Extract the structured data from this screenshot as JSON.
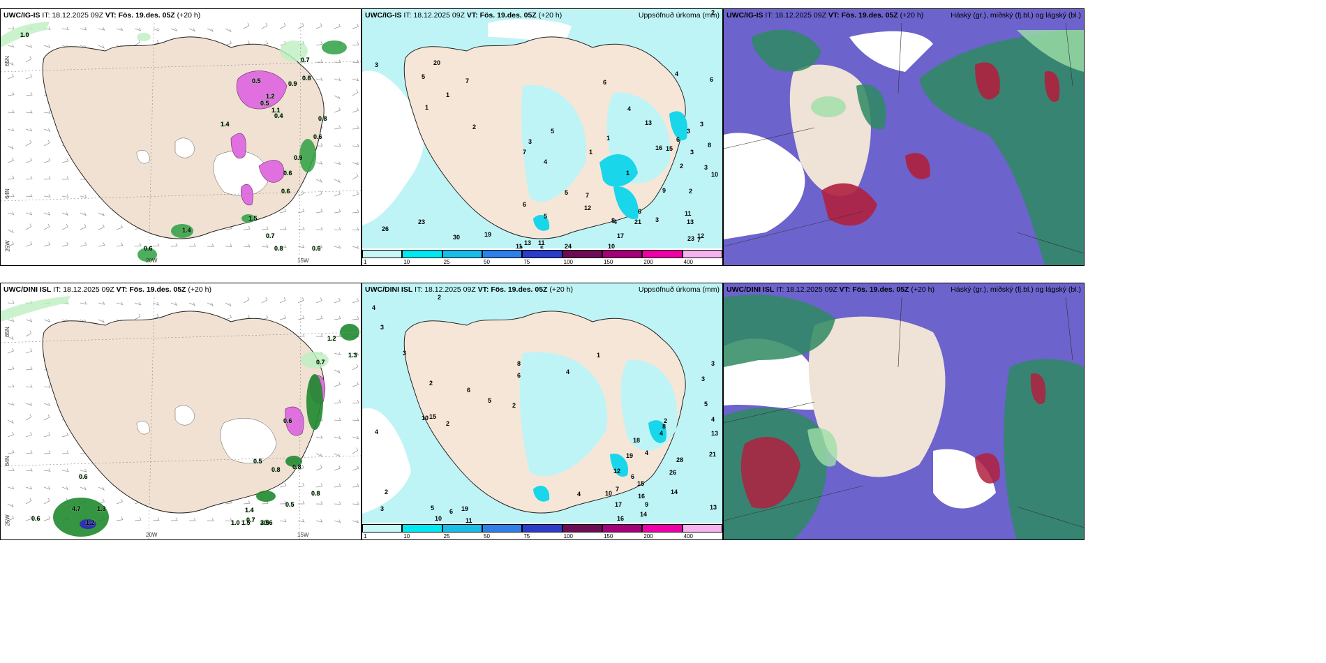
{
  "panels": {
    "tl": {
      "title": "UWC/IG-IS",
      "it": "18.12.2025 09Z",
      "vt": "Fös. 19.des. 05Z",
      "lead": "(+20 h)",
      "right": ""
    },
    "tm": {
      "title": "UWC/IG-IS",
      "it": "18.12.2025 09Z",
      "vt": "Fös. 19.des. 05Z",
      "lead": "(+20 h)",
      "right": "Uppsöfnuð úrkoma (mm)"
    },
    "tr": {
      "title": "UWC/IG-IS",
      "it": "18.12.2025 09Z",
      "vt": "Fös. 19.des. 05Z",
      "lead": "(+20 h)",
      "right": "Háský (gr.), miðský (fj.bl.) og lágský (bl.)"
    },
    "bl": {
      "title": "UWC/DINI ISL",
      "it": "18.12.2025 09Z",
      "vt": "Fös. 19.des. 05Z",
      "lead": "(+20 h)",
      "right": ""
    },
    "bm": {
      "title": "UWC/DINI ISL",
      "it": "18.12.2025 09Z",
      "vt": "Fös. 19.des. 05Z",
      "lead": "(+20 h)",
      "right": "Uppsöfnuð úrkoma (mm)"
    },
    "br": {
      "title": "UWC/DINI ISL",
      "it": "18.12.2025 09Z",
      "vt": "Fös. 19.des. 05Z",
      "lead": "(+20 h)",
      "right": "Háský (gr.), miðský (fj.bl.) og lágský (bl.)"
    }
  },
  "labels": {
    "it": "IT:",
    "vt": "VT:"
  },
  "colorbar": {
    "ticks": [
      "1",
      "10",
      "25",
      "50",
      "75",
      "100",
      "150",
      "200",
      "400"
    ],
    "colors": [
      "#c8f7f7",
      "#00e8f0",
      "#19bde8",
      "#2f7fe8",
      "#2b3cc8",
      "#6e0c55",
      "#a3007a",
      "#ee00a8",
      "#f5b4f0"
    ]
  },
  "axes": {
    "lat_65": "65N",
    "lat_64": "64N",
    "lon_20": "20W",
    "lon_15": "15W",
    "lon_25": "25W"
  },
  "values": {
    "tl": [
      "1.0",
      "0.7",
      "0.5",
      "0.8",
      "0.9",
      "1.2",
      "0.5",
      "1.1",
      "0.4",
      "0.8",
      "0.6",
      "0.9",
      "0.6",
      "0.6",
      "1.4",
      "0.7",
      "0.8",
      "0.6",
      "1.5",
      "1.4",
      "0.6"
    ],
    "tm": [
      "3",
      "2",
      "20",
      "5",
      "7",
      "1",
      "1",
      "2",
      "3",
      "7",
      "16",
      "4",
      "3",
      "2",
      "1",
      "3",
      "3",
      "6",
      "3",
      "9",
      "2",
      "11",
      "6",
      "3",
      "8",
      "21",
      "17",
      "13",
      "12",
      "23",
      "7",
      "10",
      "24",
      "26",
      "30",
      "23",
      "19",
      "11",
      "13",
      "11",
      "5",
      "12",
      "6",
      "4",
      "2",
      "1",
      "1",
      "5",
      "6",
      "4",
      "13",
      "15",
      "8",
      "10",
      "4",
      "6",
      "5",
      "7",
      "5"
    ],
    "bl": [
      "0.7",
      "1.2",
      "0.5",
      "0.6",
      "0.8",
      "0.6",
      "0.8",
      "0.5",
      "1.4",
      "0.7",
      "4.7",
      "1.3",
      "0.6",
      "1.2",
      "1.0",
      "1.5",
      "2.9",
      "0.8",
      "1.3",
      "0.6",
      "3.5"
    ],
    "bm": [
      "4",
      "3",
      "2",
      "3",
      "4",
      "2",
      "5",
      "6",
      "2",
      "10",
      "15",
      "3",
      "8",
      "6",
      "4",
      "2",
      "1",
      "5",
      "3",
      "4",
      "2",
      "13",
      "4",
      "8",
      "4",
      "21",
      "28",
      "6",
      "18",
      "19",
      "12",
      "15",
      "16",
      "26",
      "14",
      "9",
      "7",
      "10",
      "17",
      "14",
      "16",
      "4",
      "6",
      "11",
      "19",
      "10",
      "5",
      "2",
      "3",
      "13"
    ]
  }
}
